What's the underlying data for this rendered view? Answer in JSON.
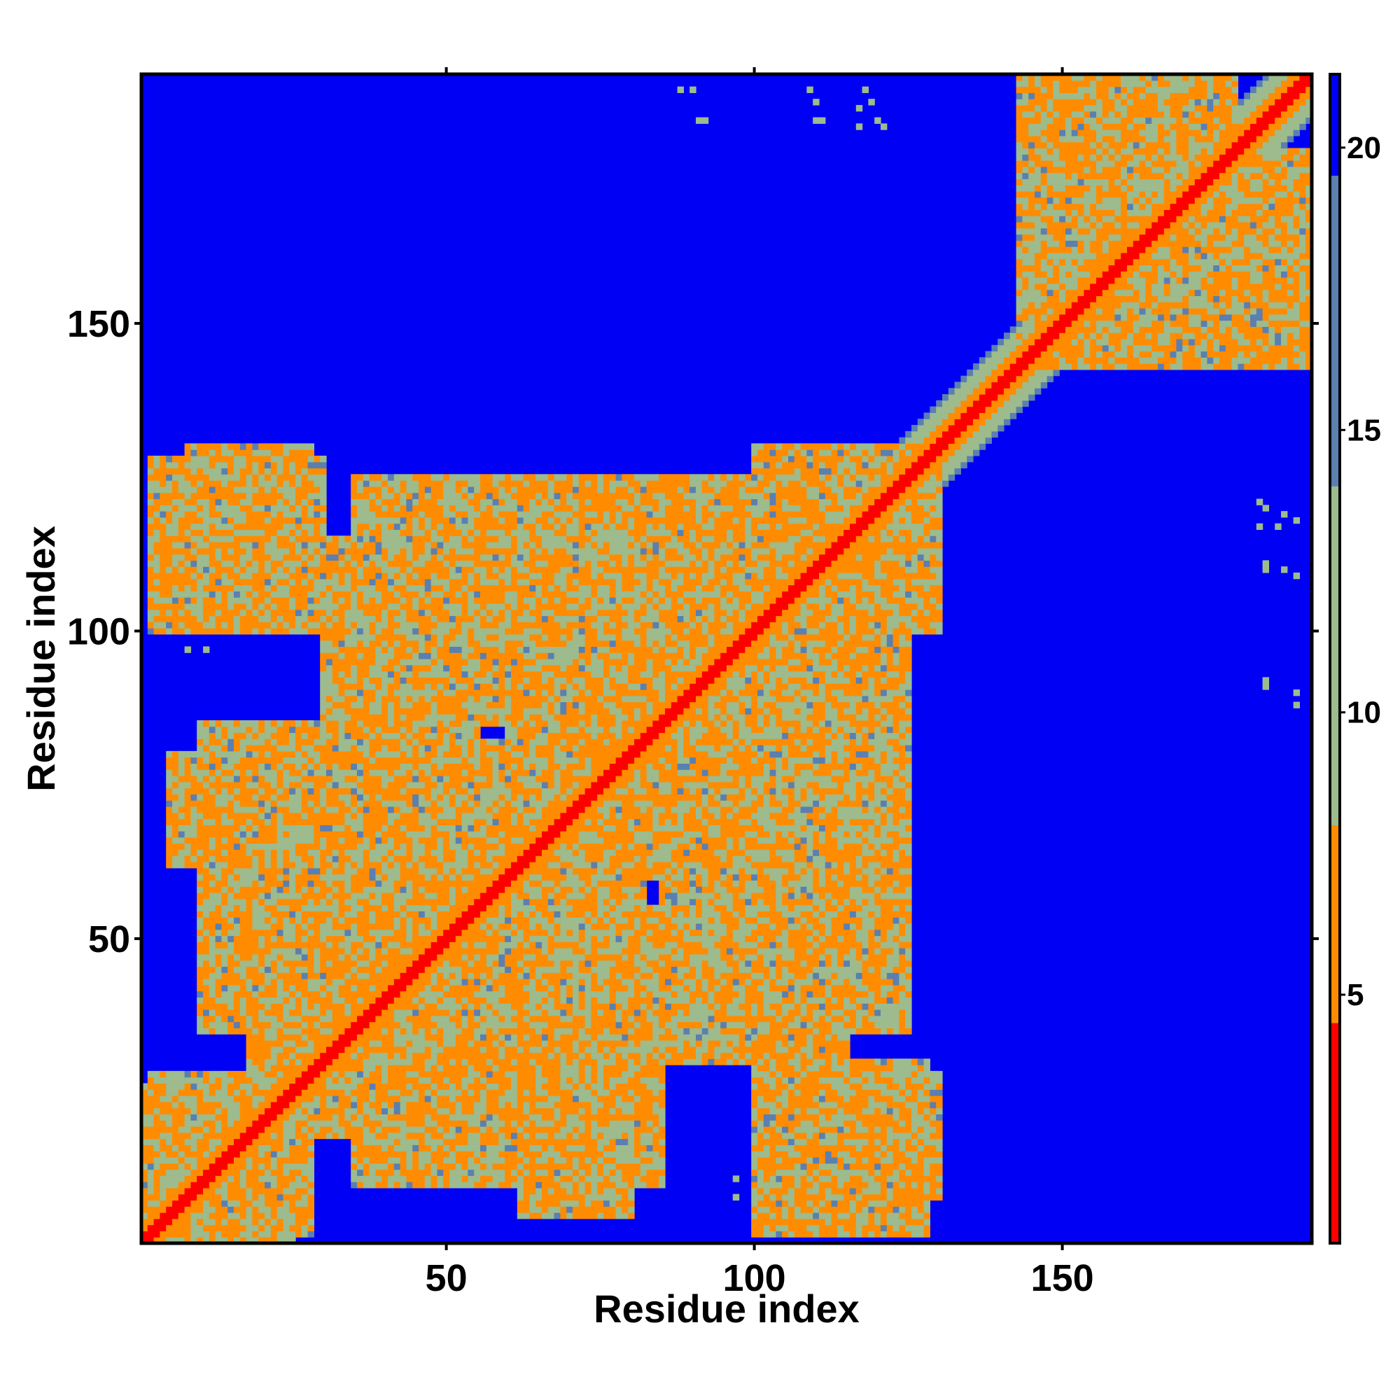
{
  "chart_data": {
    "type": "heatmap",
    "title": "",
    "xlabel": "Residue index",
    "ylabel": "Residue index",
    "xlim": [
      1,
      190
    ],
    "ylim": [
      1,
      190
    ],
    "x_ticks": [
      "50",
      "100",
      "150"
    ],
    "x_tick_values": [
      50,
      100,
      150
    ],
    "y_ticks": [
      "50",
      "100",
      "150"
    ],
    "y_tick_values": [
      50,
      100,
      150
    ],
    "n_residues": 190,
    "colorbar": {
      "range": [
        0.6,
        21.3
      ],
      "ticks": [
        "5",
        "10",
        "15",
        "20"
      ],
      "tick_values": [
        5,
        10,
        15,
        20
      ],
      "colors": [
        "#ff0000",
        "#ff8c00",
        "#9dbb8d",
        "#5a7fb0",
        "#0000f5"
      ],
      "thresholds": [
        4.5,
        8.0,
        14.0,
        19.5
      ]
    },
    "background_value": 21.3,
    "diagonal_band": {
      "core_value": 2.0,
      "inner_width": 1.5,
      "orange_width": 3.5,
      "green_width": 7.5
    },
    "antidiagonal_contacts": [
      {
        "x": [
          2,
          10
        ],
        "y": [
          22,
          14
        ],
        "value": 6.0
      },
      {
        "x": [
          14,
          21
        ],
        "y": [
          11,
          4
        ],
        "value": 6.0
      },
      {
        "x": [
          15,
          24
        ],
        "y": [
          122,
          114
        ],
        "value": 6.0
      },
      {
        "x": [
          105,
          113
        ],
        "y": [
          123,
          115
        ],
        "value": 6.0
      },
      {
        "x": [
          115,
          123
        ],
        "y": [
          113,
          105
        ],
        "value": 6.0
      },
      {
        "x": [
          84,
          89
        ],
        "y": [
          96,
          90
        ],
        "value": 6.0
      },
      {
        "x": [
          91,
          97
        ],
        "y": [
          86,
          81
        ],
        "value": 6.0
      },
      {
        "x": [
          114,
          122
        ],
        "y": [
          24,
          16
        ],
        "value": 6.0
      }
    ],
    "contact_regions": [
      {
        "x": [
          1,
          28
        ],
        "y": [
          2,
          25
        ]
      },
      {
        "x": [
          18,
          70
        ],
        "y": [
          25,
          82
        ]
      },
      {
        "x": [
          5,
          30
        ],
        "y": [
          62,
          80
        ]
      },
      {
        "x": [
          35,
          85
        ],
        "y": [
          10,
          55
        ]
      },
      {
        "x": [
          55,
          100
        ],
        "y": [
          30,
          55
        ]
      },
      {
        "x": [
          75,
          125
        ],
        "y": [
          60,
          105
        ]
      },
      {
        "x": [
          95,
          125
        ],
        "y": [
          35,
          100
        ]
      },
      {
        "x": [
          60,
          100
        ],
        "y": [
          85,
          125
        ]
      },
      {
        "x": [
          30,
          60
        ],
        "y": [
          85,
          115
        ]
      },
      {
        "x": [
          2,
          30
        ],
        "y": [
          100,
          128
        ]
      },
      {
        "x": [
          100,
          130
        ],
        "y": [
          103,
          130
        ]
      },
      {
        "x": [
          100,
          130
        ],
        "y": [
          8,
          28
        ]
      },
      {
        "x": [
          145,
          190
        ],
        "y": [
          143,
          178
        ]
      },
      {
        "x": [
          143,
          175
        ],
        "y": [
          170,
          190
        ]
      }
    ],
    "sparse_points": [
      {
        "x": 88,
        "y": 188
      },
      {
        "x": 91,
        "y": 183
      },
      {
        "x": 110,
        "y": 186
      },
      {
        "x": 111,
        "y": 183
      },
      {
        "x": 117,
        "y": 182
      },
      {
        "x": 119,
        "y": 186
      },
      {
        "x": 121,
        "y": 182
      },
      {
        "x": 183,
        "y": 120
      },
      {
        "x": 185,
        "y": 117
      },
      {
        "x": 188,
        "y": 118
      },
      {
        "x": 183,
        "y": 110
      },
      {
        "x": 188,
        "y": 109
      },
      {
        "x": 183,
        "y": 92
      },
      {
        "x": 188,
        "y": 90
      },
      {
        "x": 8,
        "y": 97
      },
      {
        "x": 11,
        "y": 97
      }
    ]
  }
}
